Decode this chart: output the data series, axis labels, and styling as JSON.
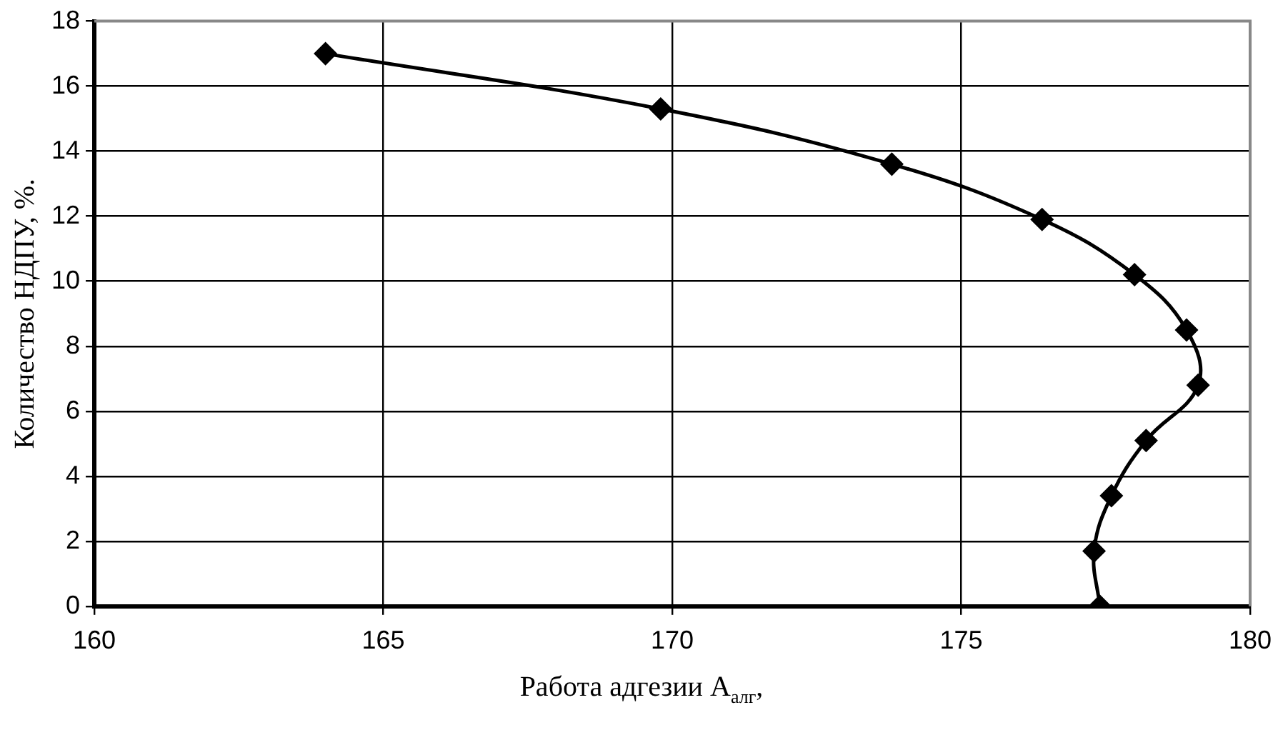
{
  "chart_data": {
    "type": "line",
    "xlabel": "Работа адгезии A$_{алг}$,",
    "ylabel": "Количество НДПУ, %.",
    "x": [
      164.0,
      169.8,
      173.8,
      176.4,
      178.0,
      178.9,
      179.1,
      178.2,
      177.6,
      177.3,
      177.4
    ],
    "series": [
      {
        "color": "#000000",
        "values": [
          17.0,
          15.3,
          13.6,
          11.9,
          10.2,
          8.5,
          6.8,
          5.1,
          3.4,
          1.7,
          0
        ]
      }
    ],
    "xlim": [
      160,
      180
    ],
    "xticks": [
      160,
      165,
      170,
      175,
      180
    ],
    "ylim": [
      0,
      18
    ],
    "yticks": [
      0,
      2,
      4,
      6,
      8,
      10,
      12,
      14,
      16,
      18
    ],
    "grid": true,
    "legend": false,
    "marker": "diamond",
    "line_style": "solid"
  }
}
